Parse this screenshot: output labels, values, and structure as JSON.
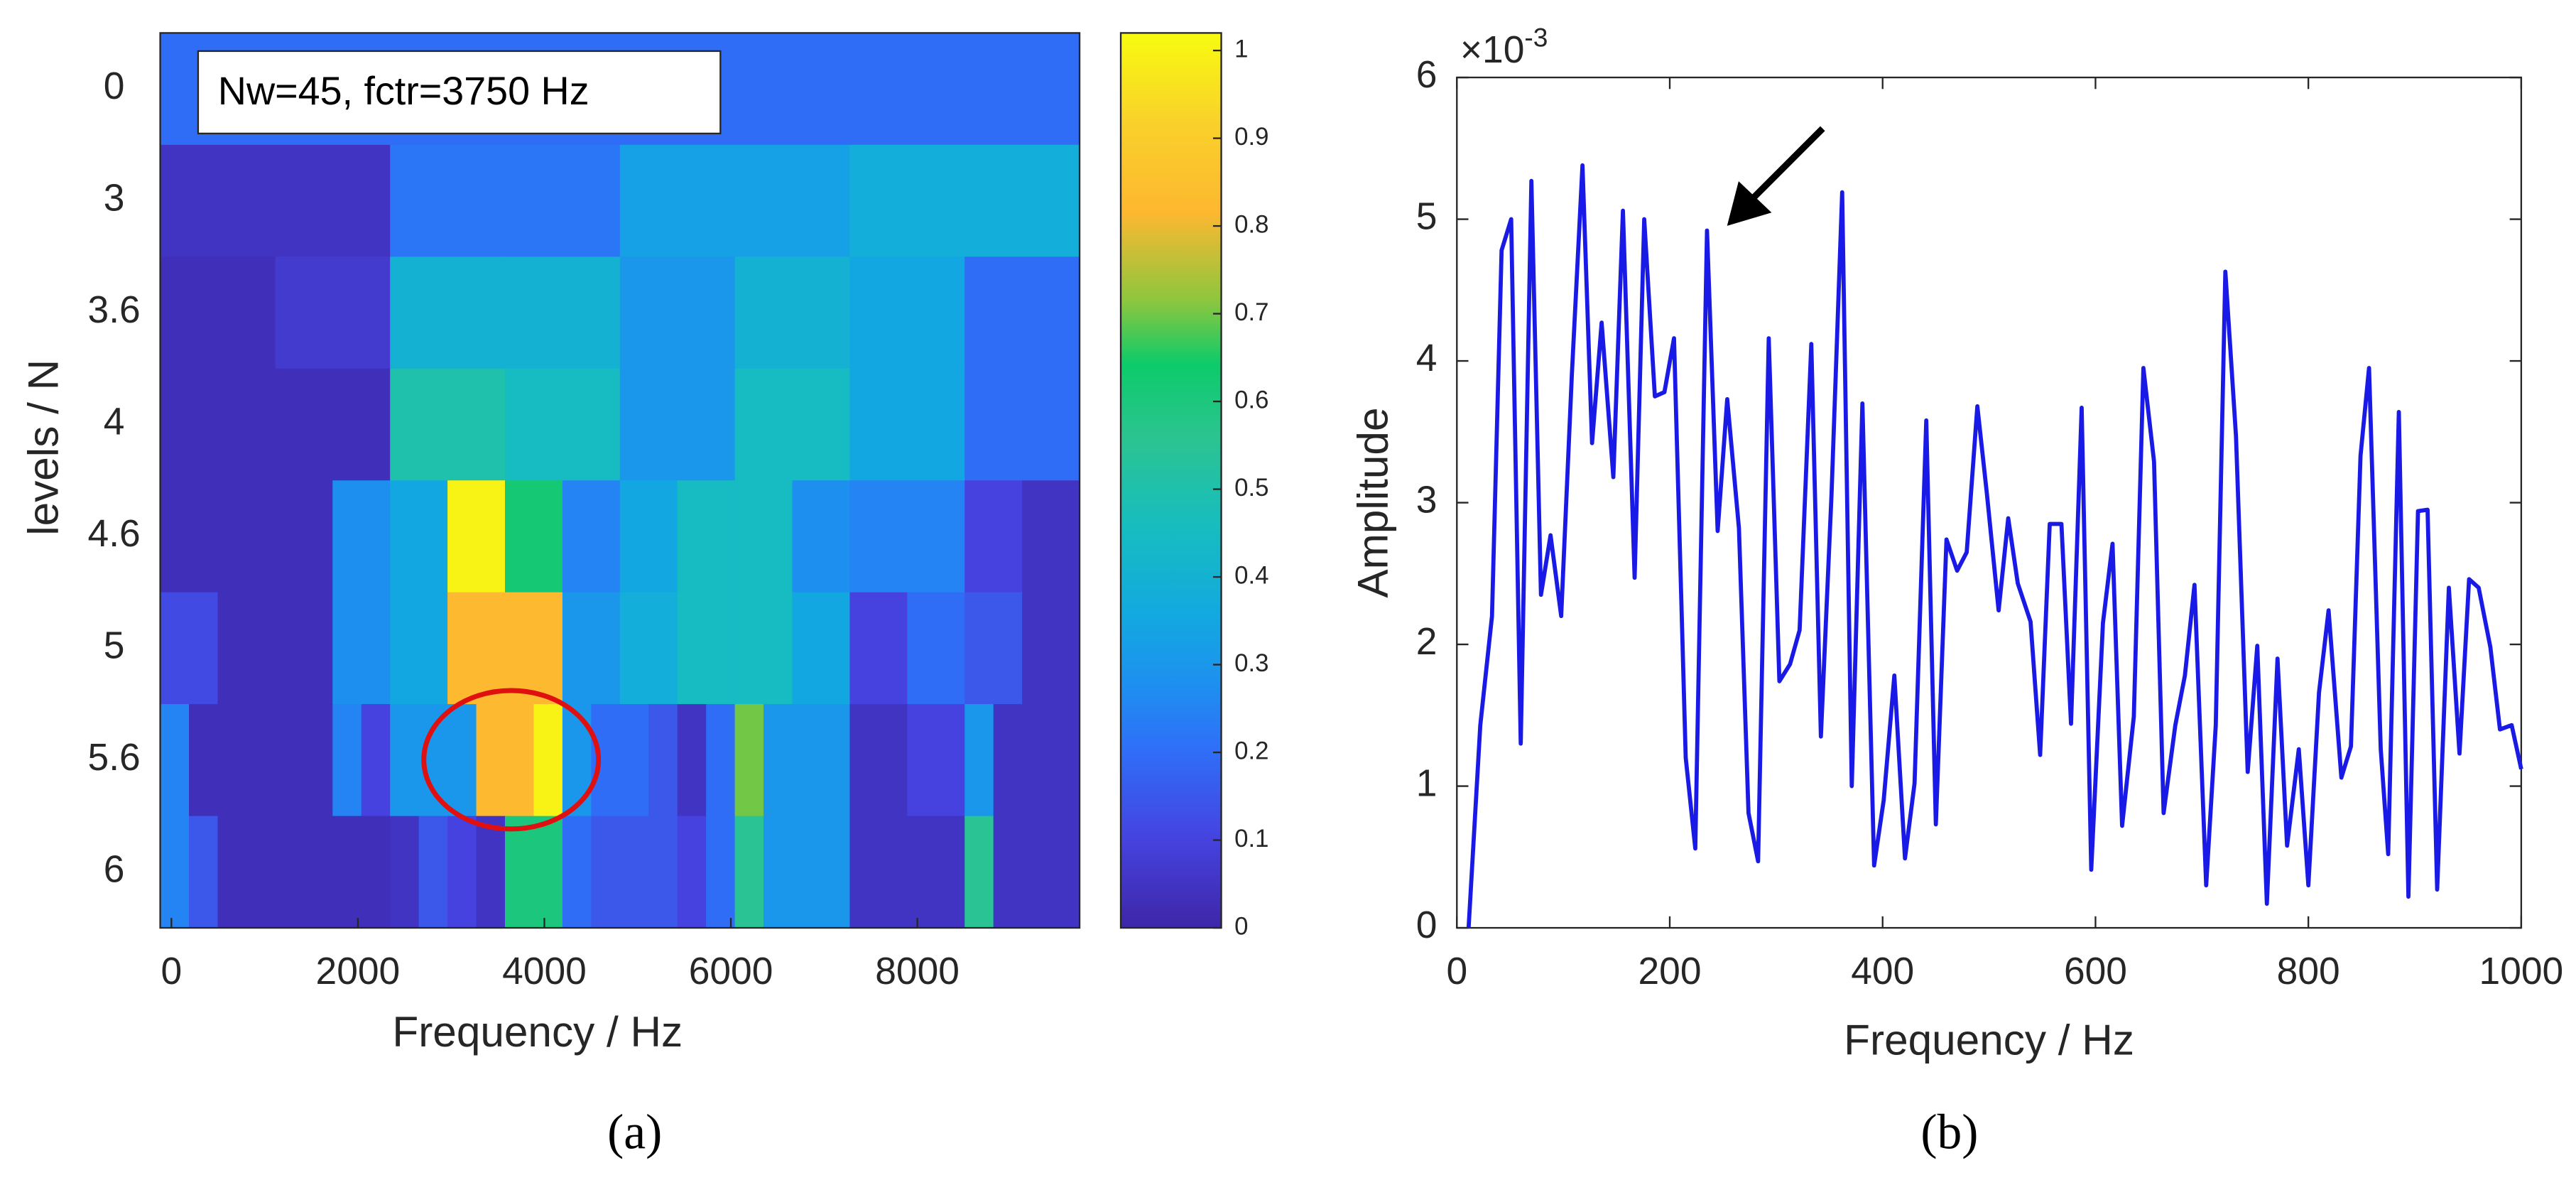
{
  "chart_data": [
    {
      "type": "heatmap",
      "annotation": "Nw=45, fctr=3750 Hz",
      "xlabel": "Frequency / Hz",
      "ylabel": "levels / N",
      "caption": "(a)",
      "xlim": [
        -120,
        9740
      ],
      "xticks": [
        0,
        2000,
        4000,
        6000,
        8000
      ],
      "rows": [
        {
          "label": "0",
          "values": [
            0.2
          ]
        },
        {
          "label": "3",
          "values": [
            0.05,
            0.22,
            0.33,
            0.38
          ]
        },
        {
          "label": "3.6",
          "values": [
            0.03,
            0.07,
            0.4,
            0.4,
            0.3,
            0.4,
            0.35,
            0.2
          ]
        },
        {
          "label": "4",
          "values": [
            0.03,
            0.03,
            0.5,
            0.45,
            0.3,
            0.45,
            0.35,
            0.2
          ]
        },
        {
          "label": "4.6",
          "values": [
            0.03,
            0.03,
            0.03,
            0.28,
            0.35,
            1.0,
            0.62,
            0.25,
            0.35,
            0.45,
            0.45,
            0.28,
            0.25,
            0.25,
            0.1,
            0.05
          ]
        },
        {
          "label": "5",
          "values": [
            0.12,
            0.03,
            0.03,
            0.28,
            0.35,
            0.82,
            0.82,
            0.3,
            0.38,
            0.45,
            0.45,
            0.35,
            0.1,
            0.2,
            0.15,
            0.05
          ]
        },
        {
          "label": "5.6",
          "values": [
            0.25,
            0.03,
            0.03,
            0.03,
            0.03,
            0.03,
            0.25,
            0.1,
            0.3,
            0.3,
            0.3,
            0.82,
            0.82,
            1.0,
            0.3,
            0.2,
            0.2,
            0.15,
            0.05,
            0.2,
            0.7,
            0.3,
            0.3,
            0.3,
            0.05,
            0.05,
            0.1,
            0.1,
            0.3,
            0.05,
            0.05,
            0.05
          ]
        },
        {
          "label": "6",
          "values": [
            0.25,
            0.15,
            0.03,
            0.03,
            0.03,
            0.03,
            0.03,
            0.03,
            0.05,
            0.15,
            0.1,
            0.05,
            0.6,
            0.6,
            0.2,
            0.15,
            0.15,
            0.15,
            0.1,
            0.2,
            0.55,
            0.3,
            0.3,
            0.3,
            0.05,
            0.05,
            0.05,
            0.05,
            0.55,
            0.05,
            0.05,
            0.05
          ]
        }
      ],
      "clim": [
        0,
        1.02
      ],
      "cticks": [
        0,
        0.1,
        0.2,
        0.3,
        0.4,
        0.5,
        0.6,
        0.7,
        0.8,
        0.9,
        1
      ],
      "colormap": [
        [
          0,
          "#3e26a8"
        ],
        [
          0.1,
          "#4543e0"
        ],
        [
          0.2,
          "#2f6ff8"
        ],
        [
          0.27,
          "#1e8ff0"
        ],
        [
          0.35,
          "#12a9e0"
        ],
        [
          0.45,
          "#17bdbf"
        ],
        [
          0.55,
          "#2bc48f"
        ],
        [
          0.63,
          "#0ccb6a"
        ],
        [
          0.7,
          "#8cc63e"
        ],
        [
          0.8,
          "#fdb830"
        ],
        [
          0.9,
          "#f9d12a"
        ],
        [
          1,
          "#f8fb10"
        ]
      ]
    },
    {
      "type": "line",
      "xlabel": "Frequency / Hz",
      "ylabel": "Amplitude",
      "caption": "(b)",
      "y_scale_label": {
        "base": "×10",
        "exponent": "-3"
      },
      "xlim": [
        0,
        1000
      ],
      "xticks": [
        0,
        200,
        400,
        600,
        800,
        1000
      ],
      "ylim": [
        0,
        6
      ],
      "yticks": [
        0,
        1,
        2,
        3,
        4,
        5,
        6
      ],
      "color": "#1a1ae6",
      "x": [
        11,
        22,
        33,
        42,
        51,
        60,
        70,
        79,
        88,
        98,
        108,
        118,
        127,
        136,
        147,
        156,
        167,
        176,
        186,
        195,
        204,
        215,
        224,
        235,
        245,
        254,
        265,
        274,
        283,
        293,
        303,
        313,
        322,
        333,
        342,
        352,
        362,
        371,
        381,
        392,
        401,
        411,
        421,
        430,
        441,
        450,
        460,
        470,
        479,
        489,
        498,
        509,
        518,
        527,
        539,
        548,
        557,
        568,
        577,
        587,
        596,
        607,
        616,
        625,
        636,
        645,
        655,
        664,
        675,
        684,
        693,
        704,
        713,
        722,
        732,
        743,
        752,
        761,
        771,
        780,
        791,
        800,
        810,
        819,
        831,
        840,
        849,
        857,
        868,
        875,
        885,
        894,
        903,
        912,
        921,
        932,
        942,
        951,
        960,
        971,
        980,
        991,
        1000
      ],
      "values": [
        0,
        1.43,
        2.2,
        4.78,
        5.0,
        1.3,
        5.27,
        2.35,
        2.77,
        2.2,
        3.9,
        5.38,
        3.42,
        4.27,
        3.18,
        5.06,
        2.47,
        5.0,
        3.75,
        3.78,
        4.16,
        1.2,
        0.56,
        4.92,
        2.8,
        3.73,
        2.82,
        0.81,
        0.47,
        4.16,
        1.74,
        1.86,
        2.1,
        4.12,
        1.35,
        3.06,
        5.19,
        1.0,
        3.7,
        0.44,
        0.9,
        1.78,
        0.49,
        1.02,
        3.58,
        0.73,
        2.74,
        2.52,
        2.65,
        3.68,
        3.06,
        2.24,
        2.89,
        2.43,
        2.16,
        1.22,
        2.85,
        2.85,
        1.44,
        3.67,
        0.41,
        2.15,
        2.71,
        0.72,
        1.49,
        3.95,
        3.29,
        0.81,
        1.43,
        1.78,
        2.42,
        0.3,
        1.43,
        4.63,
        3.47,
        1.1,
        1.99,
        0.17,
        1.9,
        0.58,
        1.26,
        0.3,
        1.66,
        2.24,
        1.06,
        1.28,
        3.33,
        3.95,
        1.26,
        0.52,
        3.64,
        0.22,
        2.94,
        2.95,
        0.27,
        2.4,
        1.23,
        2.46,
        2.4,
        1.98,
        1.4,
        1.43,
        1.12
      ]
    }
  ]
}
